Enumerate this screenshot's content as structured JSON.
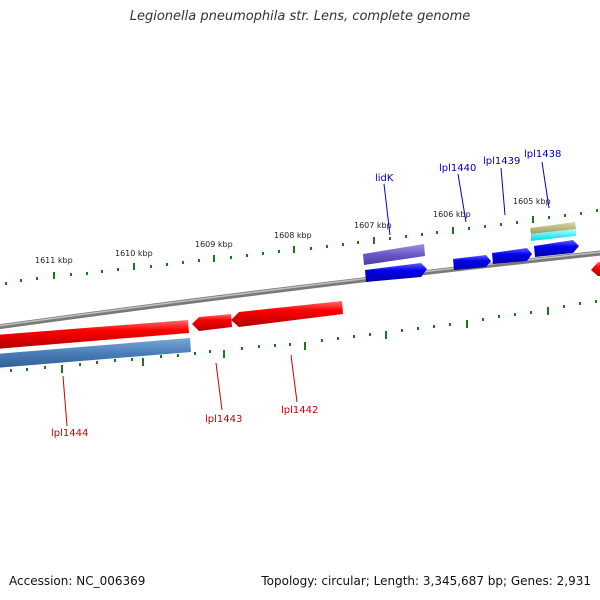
{
  "title": "Legionella pneumophila str. Lens, complete genome",
  "footer": {
    "accession": "Accession: NC_006369",
    "topology": "Topology: circular; Length: 3,345,687 bp; Genes: 2,931"
  },
  "ruler_labels": [
    "1611 kbp",
    "1610 kbp",
    "1609 kbp",
    "1608 kbp",
    "1607 kbp",
    "1606 kbp",
    "1605 kbp"
  ],
  "gene_labels": {
    "forward": [
      "lidK",
      "lpl1440",
      "lpl1439",
      "lpl1438"
    ],
    "reverse": [
      "lpl1444",
      "lpl1443",
      "lpl1442"
    ]
  },
  "colors": {
    "forward_label": "#0000cc",
    "reverse_label": "#cc0000",
    "tick": "#1a7a1a",
    "backbone": "#888888"
  }
}
